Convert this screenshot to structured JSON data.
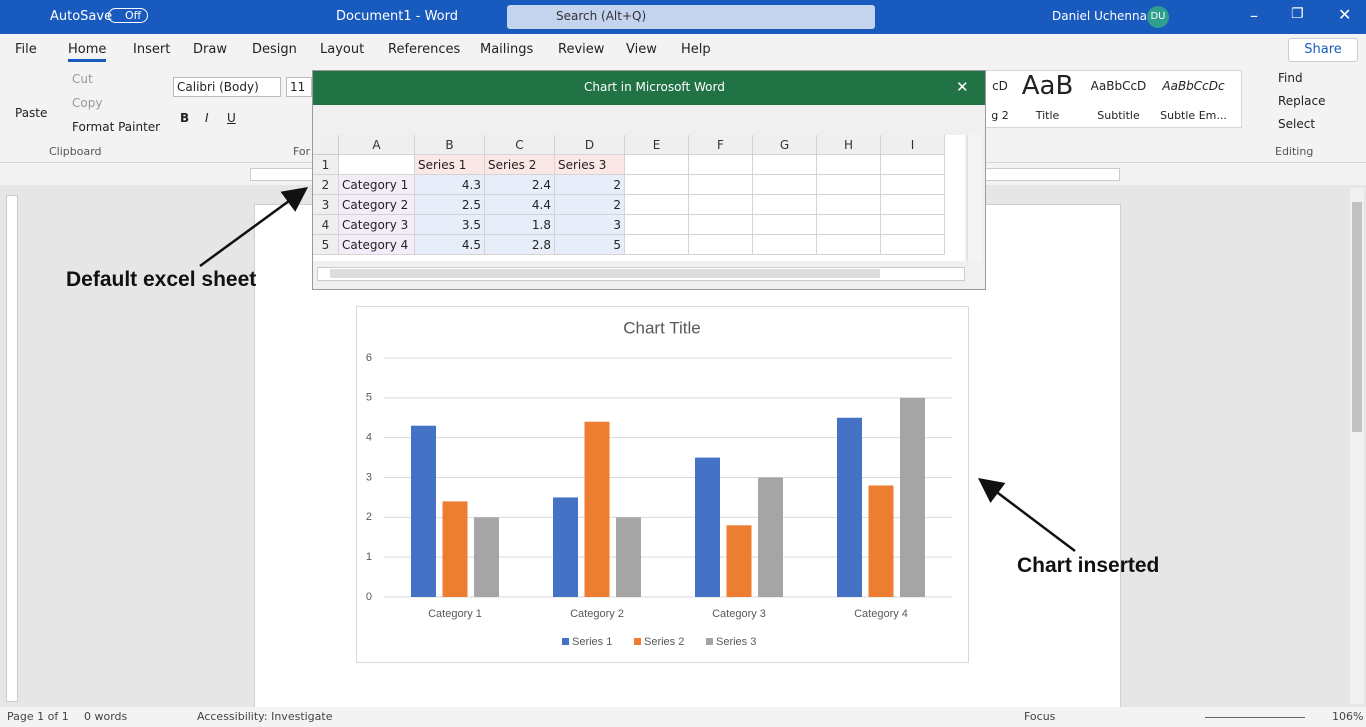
{
  "titlebar": {
    "autosave": "AutoSave",
    "toggle": "Off",
    "doc_title": "Document1 - Word",
    "search": "Search (Alt+Q)",
    "user": "Daniel Uchenna",
    "initials": "DU"
  },
  "tabs": [
    "File",
    "Home",
    "Insert",
    "Draw",
    "Design",
    "Layout",
    "References",
    "Mailings",
    "Review",
    "View",
    "Help"
  ],
  "share": "Share",
  "ribbon": {
    "paste": "Paste",
    "cut": "Cut",
    "copy": "Copy",
    "format_painter": "Format Painter",
    "clipboard": "Clipboard",
    "font_name": "Calibri (Body)",
    "font_size": "11",
    "font_group": "For",
    "styles": [
      {
        "sample": "cD",
        "name": "g 2"
      },
      {
        "sample": "AaB",
        "name": "Title"
      },
      {
        "sample": "AaBbCcD",
        "name": "Subtitle"
      },
      {
        "sample": "AaBbCcDc",
        "name": "Subtle Em..."
      }
    ],
    "find": "Find",
    "replace": "Replace",
    "select": "Select",
    "editing": "Editing"
  },
  "excel": {
    "title": "Chart in Microsoft Word",
    "columns": [
      "A",
      "B",
      "C",
      "D",
      "E",
      "F",
      "G",
      "H",
      "I"
    ],
    "rows": [
      "1",
      "2",
      "3",
      "4",
      "5"
    ]
  },
  "chart_data": {
    "type": "bar",
    "title": "Chart Title",
    "categories": [
      "Category 1",
      "Category 2",
      "Category 3",
      "Category 4"
    ],
    "series": [
      {
        "name": "Series 1",
        "color": "#4472c4",
        "values": [
          4.3,
          2.5,
          3.5,
          4.5
        ]
      },
      {
        "name": "Series 2",
        "color": "#ed7d31",
        "values": [
          2.4,
          4.4,
          1.8,
          2.8
        ]
      },
      {
        "name": "Series 3",
        "color": "#a5a5a5",
        "values": [
          2,
          2,
          3,
          5
        ]
      }
    ],
    "ylim": [
      0,
      6
    ],
    "yticks": [
      0,
      1,
      2,
      3,
      4,
      5,
      6
    ],
    "grid": true,
    "legend": "bottom"
  },
  "annotations": {
    "sheet": "Default excel sheet",
    "chart": "Chart inserted"
  },
  "status": {
    "page": "Page 1 of 1",
    "words": "0 words",
    "accessibility": "Accessibility: Investigate",
    "focus": "Focus",
    "zoom": "106%"
  }
}
